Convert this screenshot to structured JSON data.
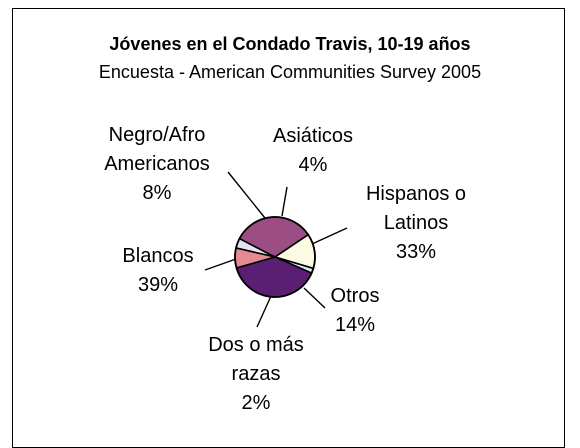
{
  "chart_data": {
    "type": "pie",
    "title": "Jóvenes en el Condado Travis, 10-19 años",
    "subtitle": "Encuesta - American Communities Survey 2005",
    "slices": [
      {
        "name": "Asiáticos",
        "value": 4,
        "label_lines": [
          "Asiáticos",
          "4%"
        ],
        "color": "#e7e3ef"
      },
      {
        "name": "Hispanos o Latinos",
        "value": 33,
        "label_lines": [
          "Hispanos o",
          "Latinos",
          "33%"
        ],
        "color": "#9c4d84"
      },
      {
        "name": "Otros",
        "value": 14,
        "label_lines": [
          "Otros",
          "14%"
        ],
        "color": "#fbfbe3"
      },
      {
        "name": "Dos o más razas",
        "value": 2,
        "label_lines": [
          "Dos o más",
          "razas",
          "2%"
        ],
        "color": "#d8eef6"
      },
      {
        "name": "Blancos",
        "value": 39,
        "label_lines": [
          "Blancos",
          "39%"
        ],
        "color": "#5a1f73"
      },
      {
        "name": "Negro/Afro Americanos",
        "value": 8,
        "label_lines": [
          "Negro/Afro",
          "Americanos",
          "8%"
        ],
        "color": "#e58a92"
      }
    ],
    "legend": "none",
    "grid": false
  }
}
